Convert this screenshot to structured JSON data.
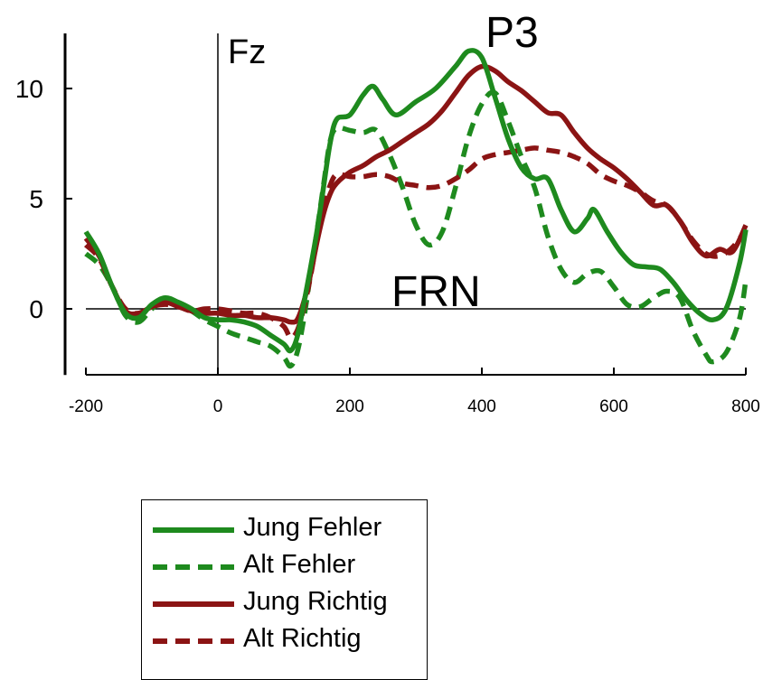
{
  "chart_data": {
    "type": "line",
    "xlim": [
      -200,
      800
    ],
    "ylim": [
      -3,
      12.5
    ],
    "x_ticks": [
      -200,
      0,
      200,
      400,
      600,
      800
    ],
    "x_tick_labels": [
      "-200",
      "0",
      "200",
      "400",
      "600",
      "800"
    ],
    "y_ticks": [
      0,
      5,
      10
    ],
    "y_tick_labels": [
      "0",
      "5",
      "10"
    ],
    "annotations": {
      "channel": "Fz",
      "p3": "P3",
      "frn": "FRN"
    },
    "legend_position": "bottom-left",
    "series": [
      {
        "name": "Jung Fehler",
        "color": "#1e8a1e",
        "dash": "solid",
        "x": [
          -200,
          -180,
          -160,
          -140,
          -120,
          -100,
          -80,
          -60,
          -40,
          -20,
          0,
          20,
          40,
          60,
          80,
          100,
          110,
          120,
          130,
          140,
          150,
          160,
          170,
          180,
          200,
          220,
          235,
          250,
          270,
          300,
          330,
          360,
          380,
          400,
          420,
          440,
          460,
          480,
          500,
          520,
          540,
          560,
          570,
          590,
          610,
          630,
          650,
          670,
          690,
          710,
          730,
          750,
          770,
          790,
          800
        ],
        "y": [
          3.5,
          2.5,
          1.0,
          -0.2,
          -0.4,
          0.2,
          0.5,
          0.3,
          0.0,
          -0.4,
          -0.5,
          -0.5,
          -0.6,
          -0.8,
          -1.2,
          -1.6,
          -1.9,
          -1.3,
          0.2,
          1.8,
          3.5,
          5.5,
          7.5,
          8.6,
          8.8,
          9.7,
          10.1,
          9.5,
          8.8,
          9.4,
          10.0,
          11.0,
          11.7,
          11.4,
          9.6,
          7.7,
          6.4,
          5.9,
          5.9,
          4.5,
          3.5,
          4.1,
          4.5,
          3.5,
          2.6,
          2.0,
          1.9,
          1.8,
          1.2,
          0.4,
          -0.2,
          -0.5,
          0.0,
          2.0,
          3.6
        ]
      },
      {
        "name": "Alt Fehler",
        "color": "#1e8a1e",
        "dash": "dashed",
        "x": [
          -200,
          -180,
          -160,
          -140,
          -120,
          -100,
          -80,
          -60,
          -40,
          -20,
          0,
          20,
          40,
          60,
          80,
          100,
          110,
          120,
          130,
          140,
          150,
          160,
          170,
          180,
          200,
          220,
          240,
          260,
          280,
          300,
          320,
          340,
          360,
          380,
          400,
          420,
          440,
          460,
          480,
          500,
          520,
          540,
          560,
          580,
          600,
          620,
          640,
          660,
          680,
          700,
          720,
          740,
          750,
          770,
          790,
          800
        ],
        "y": [
          2.5,
          2.0,
          1.0,
          -0.3,
          -0.6,
          0.0,
          0.4,
          0.2,
          -0.1,
          -0.5,
          -0.8,
          -1.1,
          -1.3,
          -1.5,
          -1.7,
          -2.2,
          -2.6,
          -2.0,
          -0.5,
          1.5,
          3.5,
          5.6,
          7.6,
          8.2,
          8.1,
          8.0,
          8.1,
          7.0,
          5.5,
          3.8,
          2.9,
          3.5,
          5.5,
          7.8,
          9.3,
          9.8,
          8.5,
          6.9,
          5.5,
          3.3,
          1.8,
          1.2,
          1.6,
          1.7,
          1.0,
          0.2,
          0.1,
          0.5,
          0.8,
          0.5,
          -1.0,
          -2.1,
          -2.4,
          -2.0,
          -0.5,
          1.3
        ]
      },
      {
        "name": "Jung Richtig",
        "color": "#8b1414",
        "dash": "solid",
        "x": [
          -200,
          -180,
          -160,
          -140,
          -120,
          -100,
          -80,
          -60,
          -40,
          -20,
          0,
          20,
          40,
          60,
          80,
          100,
          110,
          120,
          130,
          140,
          150,
          160,
          170,
          180,
          200,
          220,
          240,
          260,
          280,
          300,
          320,
          340,
          360,
          380,
          400,
          420,
          440,
          460,
          480,
          500,
          520,
          540,
          560,
          580,
          600,
          620,
          640,
          660,
          680,
          700,
          720,
          740,
          760,
          780,
          800
        ],
        "y": [
          3.2,
          2.4,
          1.0,
          -0.1,
          -0.2,
          0.1,
          0.3,
          0.1,
          -0.1,
          -0.2,
          -0.2,
          -0.3,
          -0.3,
          -0.4,
          -0.4,
          -0.5,
          -0.6,
          -0.5,
          0.3,
          1.5,
          3.0,
          4.3,
          5.2,
          5.7,
          6.2,
          6.5,
          6.9,
          7.2,
          7.6,
          8.0,
          8.4,
          9.0,
          9.8,
          10.6,
          11.0,
          10.8,
          10.3,
          9.9,
          9.4,
          8.9,
          8.8,
          8.0,
          7.3,
          6.8,
          6.4,
          5.9,
          5.3,
          4.7,
          4.7,
          4.0,
          3.0,
          2.4,
          2.7,
          2.6,
          3.8
        ]
      },
      {
        "name": "Alt Richtig",
        "color": "#8b1414",
        "dash": "dashed",
        "x": [
          -200,
          -180,
          -160,
          -140,
          -120,
          -100,
          -80,
          -60,
          -40,
          -20,
          0,
          20,
          40,
          60,
          80,
          100,
          110,
          120,
          130,
          140,
          150,
          160,
          170,
          180,
          200,
          220,
          240,
          260,
          280,
          300,
          320,
          340,
          360,
          380,
          400,
          420,
          440,
          460,
          480,
          500,
          520,
          540,
          560,
          580,
          600,
          620,
          640,
          660,
          680,
          700,
          720,
          740,
          760,
          780,
          800
        ],
        "y": [
          2.9,
          2.3,
          1.0,
          0.0,
          -0.2,
          0.1,
          0.2,
          0.1,
          -0.1,
          0.0,
          0.0,
          -0.1,
          -0.2,
          -0.2,
          -0.4,
          -0.8,
          -1.3,
          -1.0,
          0.0,
          1.4,
          3.1,
          4.6,
          5.6,
          6.1,
          6.0,
          6.0,
          6.1,
          6.0,
          5.7,
          5.6,
          5.5,
          5.6,
          5.9,
          6.3,
          6.8,
          7.0,
          7.1,
          7.2,
          7.3,
          7.2,
          7.1,
          6.9,
          6.6,
          6.1,
          5.8,
          5.6,
          5.3,
          4.9,
          4.7,
          4.0,
          3.1,
          2.5,
          2.4,
          2.8,
          3.6
        ]
      }
    ]
  }
}
